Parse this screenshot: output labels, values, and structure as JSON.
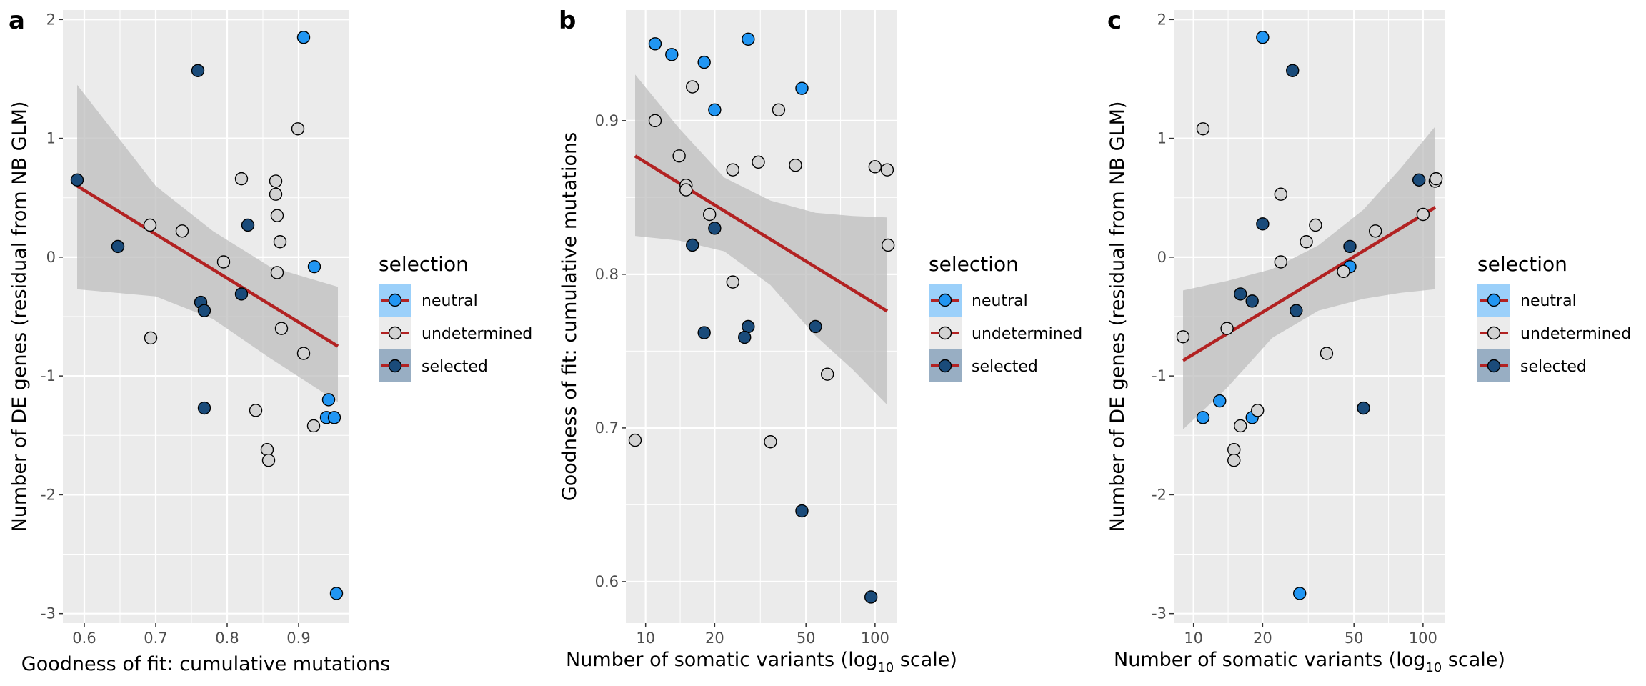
{
  "colors": {
    "panel_bg": "#EBEBEB",
    "grid": "#FFFFFF",
    "neutral": "#2196F3",
    "undetermined": "#D3D3D3",
    "selected": "#1A4B7A",
    "point_stroke": "#000000",
    "fit_line": "#B22222",
    "ribbon": "#BDBDBD"
  },
  "chart_data": [
    {
      "panel_label": "a",
      "type": "scatter",
      "x_scale": "linear",
      "xlabel": "Goodness of fit: cumulative mutations",
      "ylabel": "Number of DE genes (residual from NB GLM)",
      "xlim": [
        0.57,
        0.97
      ],
      "ylim": [
        -3.08,
        2.08
      ],
      "x_ticks": [
        0.6,
        0.7,
        0.8,
        0.9
      ],
      "y_ticks": [
        -3,
        -2,
        -1,
        0,
        1,
        2
      ],
      "x_tick_labels": [
        "0.6",
        "0.7",
        "0.8",
        "0.9"
      ],
      "y_tick_labels": [
        "-3",
        "-2",
        "-1",
        "0",
        "1",
        "2"
      ],
      "fit": {
        "x": [
          0.59,
          0.955
        ],
        "y": [
          0.6,
          -0.75
        ]
      },
      "ribbon": {
        "x": [
          0.59,
          0.7,
          0.78,
          0.86,
          0.955
        ],
        "upper": [
          1.45,
          0.6,
          0.22,
          -0.08,
          -0.25
        ],
        "lower": [
          -0.27,
          -0.33,
          -0.52,
          -0.85,
          -1.22
        ]
      },
      "legend": {
        "title": "selection",
        "position": "right",
        "entries": [
          "neutral",
          "undetermined",
          "selected"
        ]
      },
      "points": [
        {
          "x": 0.59,
          "y": 0.65,
          "g": "selected"
        },
        {
          "x": 0.647,
          "y": 0.09,
          "g": "selected"
        },
        {
          "x": 0.759,
          "y": 1.57,
          "g": "selected"
        },
        {
          "x": 0.829,
          "y": 0.27,
          "g": "selected"
        },
        {
          "x": 0.763,
          "y": -0.38,
          "g": "selected"
        },
        {
          "x": 0.768,
          "y": -0.45,
          "g": "selected"
        },
        {
          "x": 0.82,
          "y": -0.31,
          "g": "selected"
        },
        {
          "x": 0.768,
          "y": -1.27,
          "g": "selected"
        },
        {
          "x": 0.692,
          "y": 0.27,
          "g": "undetermined"
        },
        {
          "x": 0.737,
          "y": 0.22,
          "g": "undetermined"
        },
        {
          "x": 0.795,
          "y": -0.04,
          "g": "undetermined"
        },
        {
          "x": 0.693,
          "y": -0.68,
          "g": "undetermined"
        },
        {
          "x": 0.82,
          "y": 0.66,
          "g": "undetermined"
        },
        {
          "x": 0.868,
          "y": 0.64,
          "g": "undetermined"
        },
        {
          "x": 0.868,
          "y": 0.53,
          "g": "undetermined"
        },
        {
          "x": 0.87,
          "y": 0.35,
          "g": "undetermined"
        },
        {
          "x": 0.874,
          "y": 0.13,
          "g": "undetermined"
        },
        {
          "x": 0.87,
          "y": -0.13,
          "g": "undetermined"
        },
        {
          "x": 0.899,
          "y": 1.08,
          "g": "undetermined"
        },
        {
          "x": 0.876,
          "y": -0.6,
          "g": "undetermined"
        },
        {
          "x": 0.907,
          "y": -0.81,
          "g": "undetermined"
        },
        {
          "x": 0.84,
          "y": -1.29,
          "g": "undetermined"
        },
        {
          "x": 0.856,
          "y": -1.62,
          "g": "undetermined"
        },
        {
          "x": 0.858,
          "y": -1.71,
          "g": "undetermined"
        },
        {
          "x": 0.921,
          "y": -1.42,
          "g": "undetermined"
        },
        {
          "x": 0.907,
          "y": 1.85,
          "g": "neutral"
        },
        {
          "x": 0.922,
          "y": -0.08,
          "g": "neutral"
        },
        {
          "x": 0.942,
          "y": -1.2,
          "g": "neutral"
        },
        {
          "x": 0.939,
          "y": -1.35,
          "g": "neutral"
        },
        {
          "x": 0.95,
          "y": -1.35,
          "g": "neutral"
        },
        {
          "x": 0.953,
          "y": -2.83,
          "g": "neutral"
        }
      ]
    },
    {
      "panel_label": "b",
      "type": "scatter",
      "x_scale": "log10",
      "xlabel_main": "Number of somatic variants (log",
      "xlabel_sub": "10",
      "xlabel_tail": " scale)",
      "ylabel": "Goodness of fit: cumulative mutations",
      "xlim": [
        8.2,
        125
      ],
      "ylim": [
        0.573,
        0.972
      ],
      "x_ticks": [
        10,
        20,
        50,
        100
      ],
      "y_ticks": [
        0.6,
        0.7,
        0.8,
        0.9
      ],
      "x_tick_labels": [
        "10",
        "20",
        "50",
        "100"
      ],
      "y_tick_labels": [
        "0.6",
        "0.7",
        "0.8",
        "0.9"
      ],
      "fit": {
        "x": [
          9,
          113
        ],
        "y": [
          0.877,
          0.776
        ]
      },
      "ribbon": {
        "x": [
          9,
          14,
          22,
          35,
          55,
          80,
          113
        ],
        "upper": [
          0.93,
          0.895,
          0.863,
          0.848,
          0.84,
          0.838,
          0.837
        ],
        "lower": [
          0.825,
          0.822,
          0.815,
          0.793,
          0.76,
          0.738,
          0.715
        ]
      },
      "legend": {
        "title": "selection",
        "position": "right",
        "entries": [
          "neutral",
          "undetermined",
          "selected"
        ]
      },
      "points": [
        {
          "x": 11,
          "y": 0.95,
          "g": "neutral"
        },
        {
          "x": 13,
          "y": 0.943,
          "g": "neutral"
        },
        {
          "x": 18,
          "y": 0.938,
          "g": "neutral"
        },
        {
          "x": 28,
          "y": 0.953,
          "g": "neutral"
        },
        {
          "x": 20,
          "y": 0.907,
          "g": "neutral"
        },
        {
          "x": 48,
          "y": 0.921,
          "g": "neutral"
        },
        {
          "x": 11,
          "y": 0.9,
          "g": "undetermined"
        },
        {
          "x": 16,
          "y": 0.922,
          "g": "undetermined"
        },
        {
          "x": 14,
          "y": 0.877,
          "g": "undetermined"
        },
        {
          "x": 15,
          "y": 0.858,
          "g": "undetermined"
        },
        {
          "x": 15,
          "y": 0.855,
          "g": "undetermined"
        },
        {
          "x": 19,
          "y": 0.839,
          "g": "undetermined"
        },
        {
          "x": 24,
          "y": 0.868,
          "g": "undetermined"
        },
        {
          "x": 31,
          "y": 0.873,
          "g": "undetermined"
        },
        {
          "x": 38,
          "y": 0.907,
          "g": "undetermined"
        },
        {
          "x": 45,
          "y": 0.871,
          "g": "undetermined"
        },
        {
          "x": 100,
          "y": 0.87,
          "g": "undetermined"
        },
        {
          "x": 113,
          "y": 0.868,
          "g": "undetermined"
        },
        {
          "x": 114,
          "y": 0.819,
          "g": "undetermined"
        },
        {
          "x": 24,
          "y": 0.795,
          "g": "undetermined"
        },
        {
          "x": 62,
          "y": 0.735,
          "g": "undetermined"
        },
        {
          "x": 9,
          "y": 0.692,
          "g": "undetermined"
        },
        {
          "x": 35,
          "y": 0.691,
          "g": "undetermined"
        },
        {
          "x": 20,
          "y": 0.83,
          "g": "selected"
        },
        {
          "x": 16,
          "y": 0.819,
          "g": "selected"
        },
        {
          "x": 18,
          "y": 0.762,
          "g": "selected"
        },
        {
          "x": 28,
          "y": 0.766,
          "g": "selected"
        },
        {
          "x": 27,
          "y": 0.759,
          "g": "selected"
        },
        {
          "x": 55,
          "y": 0.766,
          "g": "selected"
        },
        {
          "x": 48,
          "y": 0.646,
          "g": "selected"
        },
        {
          "x": 96,
          "y": 0.59,
          "g": "selected"
        }
      ]
    },
    {
      "panel_label": "c",
      "type": "scatter",
      "x_scale": "log10",
      "xlabel_main": "Number of somatic variants (log",
      "xlabel_sub": "10",
      "xlabel_tail": " scale)",
      "ylabel": "Number of DE genes (residual from NB GLM)",
      "xlim": [
        8.2,
        125
      ],
      "ylim": [
        -3.08,
        2.08
      ],
      "x_ticks": [
        10,
        20,
        50,
        100
      ],
      "y_ticks": [
        -3,
        -2,
        -1,
        0,
        1,
        2
      ],
      "x_tick_labels": [
        "10",
        "20",
        "50",
        "100"
      ],
      "y_tick_labels": [
        "-3",
        "-2",
        "-1",
        "0",
        "1",
        "2"
      ],
      "fit": {
        "x": [
          9,
          113
        ],
        "y": [
          -0.87,
          0.42
        ]
      },
      "ribbon": {
        "x": [
          9,
          14,
          22,
          35,
          55,
          80,
          113
        ],
        "upper": [
          -0.28,
          -0.2,
          -0.1,
          0.1,
          0.4,
          0.75,
          1.1
        ],
        "lower": [
          -1.45,
          -1.1,
          -0.68,
          -0.45,
          -0.35,
          -0.3,
          -0.27
        ]
      },
      "legend": {
        "title": "selection",
        "position": "right",
        "entries": [
          "neutral",
          "undetermined",
          "selected"
        ]
      },
      "points": [
        {
          "x": 20,
          "y": 1.85,
          "g": "neutral"
        },
        {
          "x": 48,
          "y": -0.08,
          "g": "neutral"
        },
        {
          "x": 11,
          "y": -1.35,
          "g": "neutral"
        },
        {
          "x": 13,
          "y": -1.21,
          "g": "neutral"
        },
        {
          "x": 18,
          "y": -1.35,
          "g": "neutral"
        },
        {
          "x": 29,
          "y": -2.83,
          "g": "neutral"
        },
        {
          "x": 27,
          "y": 1.57,
          "g": "selected"
        },
        {
          "x": 20,
          "y": 0.28,
          "g": "selected"
        },
        {
          "x": 16,
          "y": -0.31,
          "g": "selected"
        },
        {
          "x": 18,
          "y": -0.37,
          "g": "selected"
        },
        {
          "x": 28,
          "y": -0.45,
          "g": "selected"
        },
        {
          "x": 48,
          "y": 0.09,
          "g": "selected"
        },
        {
          "x": 96,
          "y": 0.65,
          "g": "selected"
        },
        {
          "x": 55,
          "y": -1.27,
          "g": "selected"
        },
        {
          "x": 11,
          "y": 1.08,
          "g": "undetermined"
        },
        {
          "x": 24,
          "y": 0.53,
          "g": "undetermined"
        },
        {
          "x": 24,
          "y": -0.04,
          "g": "undetermined"
        },
        {
          "x": 31,
          "y": 0.13,
          "g": "undetermined"
        },
        {
          "x": 34,
          "y": 0.27,
          "g": "undetermined"
        },
        {
          "x": 45,
          "y": -0.12,
          "g": "undetermined"
        },
        {
          "x": 62,
          "y": 0.22,
          "g": "undetermined"
        },
        {
          "x": 100,
          "y": 0.36,
          "g": "undetermined"
        },
        {
          "x": 113,
          "y": 0.64,
          "g": "undetermined"
        },
        {
          "x": 114,
          "y": 0.66,
          "g": "undetermined"
        },
        {
          "x": 9,
          "y": -0.67,
          "g": "undetermined"
        },
        {
          "x": 14,
          "y": -0.6,
          "g": "undetermined"
        },
        {
          "x": 38,
          "y": -0.81,
          "g": "undetermined"
        },
        {
          "x": 19,
          "y": -1.29,
          "g": "undetermined"
        },
        {
          "x": 16,
          "y": -1.42,
          "g": "undetermined"
        },
        {
          "x": 15,
          "y": -1.62,
          "g": "undetermined"
        },
        {
          "x": 15,
          "y": -1.71,
          "g": "undetermined"
        }
      ]
    }
  ]
}
